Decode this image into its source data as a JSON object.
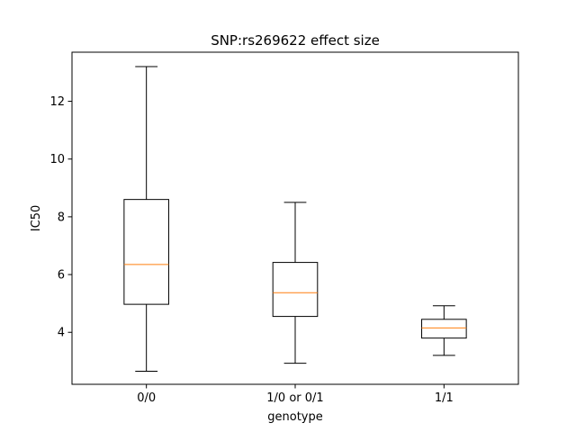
{
  "chart_data": {
    "type": "boxplot",
    "title": "SNP:rs269622 effect size",
    "xlabel": "genotype",
    "ylabel": "IC50",
    "categories": [
      "0/0",
      "1/0 or 0/1",
      "1/1"
    ],
    "boxes": [
      {
        "category": "0/0",
        "whisker_low": 2.65,
        "q1": 4.97,
        "median": 6.35,
        "q3": 8.6,
        "whisker_high": 13.2
      },
      {
        "category": "1/0 or 0/1",
        "whisker_low": 2.93,
        "q1": 4.55,
        "median": 5.37,
        "q3": 6.42,
        "whisker_high": 8.5
      },
      {
        "category": "1/1",
        "whisker_low": 3.2,
        "q1": 3.8,
        "median": 4.15,
        "q3": 4.45,
        "whisker_high": 4.92
      }
    ],
    "ylim": [
      2.2,
      13.7
    ],
    "yticks": [
      "4",
      "6",
      "8",
      "10",
      "12"
    ],
    "grid": false,
    "colors": {
      "box": "#000000",
      "median": "#ff7f0e"
    }
  }
}
